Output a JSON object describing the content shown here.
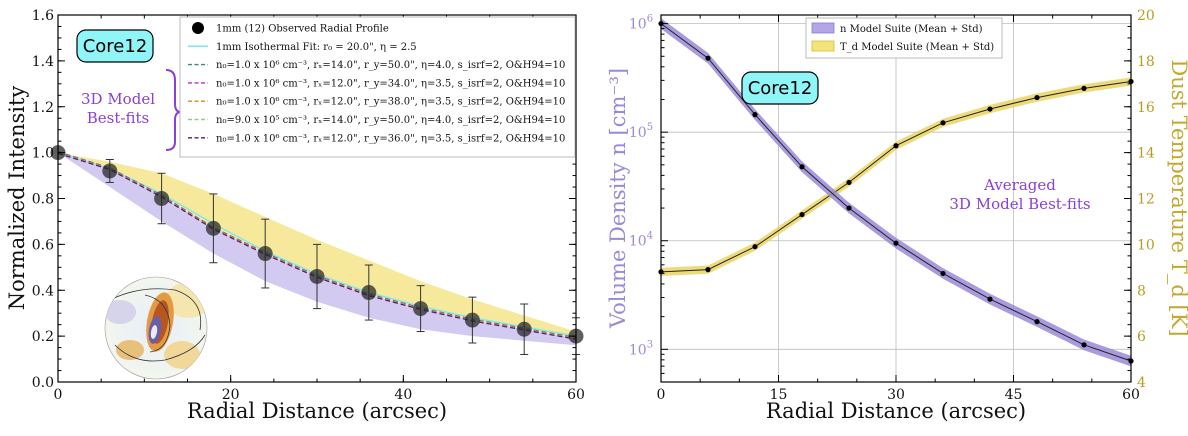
{
  "chart_data": [
    {
      "type": "line",
      "panel": "left",
      "xlabel": "Radial Distance (arcsec)",
      "ylabel": "Normalized Intensity",
      "xlim": [
        0,
        60
      ],
      "ylim": [
        0.0,
        1.6
      ],
      "xticks": [
        "0",
        "20",
        "40",
        "60"
      ],
      "yticks": [
        "0.0",
        "0.2",
        "0.4",
        "0.6",
        "0.8",
        "1.0",
        "1.2",
        "1.4",
        "1.6"
      ],
      "badge": "Core12",
      "annotation": [
        "3D Model",
        "Best-fits"
      ],
      "observed": {
        "name": "1mm (12) Observed Radial Profile",
        "x": [
          0,
          6,
          12,
          18,
          24,
          30,
          36,
          42,
          48,
          54,
          60
        ],
        "y": [
          1.0,
          0.92,
          0.8,
          0.67,
          0.56,
          0.46,
          0.39,
          0.32,
          0.27,
          0.23,
          0.2
        ],
        "err": [
          0.0,
          0.05,
          0.11,
          0.15,
          0.15,
          0.14,
          0.12,
          0.1,
          0.1,
          0.11,
          0.08
        ]
      },
      "isothermal": {
        "name": "1mm Isothermal Fit: r₀ = 20.0\", η = 2.5",
        "color": "#7fe6f2",
        "x": [
          0,
          6,
          12,
          18,
          24,
          30,
          36,
          42,
          48,
          54,
          60
        ],
        "y": [
          1.0,
          0.93,
          0.82,
          0.69,
          0.57,
          0.47,
          0.39,
          0.33,
          0.28,
          0.24,
          0.2
        ]
      },
      "models": [
        {
          "name": "n₀=1.0 x 10⁶ cm⁻³, rₓ=14.0\", r_y=50.0\", η=4.0, s_isrf=2, O&H94=10",
          "color": "#3d8a7a"
        },
        {
          "name": "n₀=1.0 x 10⁶ cm⁻³, rₓ=12.0\", r_y=34.0\", η=3.5, s_isrf=2, O&H94=10",
          "color": "#c02cc4"
        },
        {
          "name": "n₀=1.0 x 10⁶ cm⁻³, rₓ=12.0\", r_y=38.0\", η=3.5, s_isrf=2, O&H94=10",
          "color": "#c9901c"
        },
        {
          "name": "n₀=9.0 x 10⁵ cm⁻³, rₓ=14.0\", r_y=50.0\", η=4.0, s_isrf=2, O&H94=10",
          "color": "#9bc49b"
        },
        {
          "name": "n₀=1.0 x 10⁶ cm⁻³, rₓ=12.0\", r_y=36.0\", η=3.5, s_isrf=2, O&H94=10",
          "color": "#5a1a6a"
        }
      ],
      "model_curve": {
        "x": [
          0,
          6,
          12,
          18,
          24,
          30,
          36,
          42,
          48,
          54,
          60
        ],
        "y": [
          1.0,
          0.93,
          0.81,
          0.67,
          0.56,
          0.46,
          0.38,
          0.32,
          0.27,
          0.23,
          0.19
        ]
      },
      "band_yellow": {
        "color": "#f4e27a",
        "x": [
          0,
          6,
          12,
          18,
          24,
          30,
          36,
          42,
          48,
          54,
          60
        ],
        "upper": [
          1.0,
          0.96,
          0.91,
          0.82,
          0.72,
          0.62,
          0.53,
          0.44,
          0.36,
          0.29,
          0.22
        ],
        "lower": [
          1.0,
          0.93,
          0.81,
          0.67,
          0.56,
          0.46,
          0.38,
          0.32,
          0.27,
          0.23,
          0.19
        ]
      },
      "band_purple": {
        "color": "#b4a6e6",
        "x": [
          0,
          6,
          12,
          18,
          24,
          30,
          36,
          42,
          48,
          54,
          60
        ],
        "upper": [
          1.0,
          0.93,
          0.81,
          0.67,
          0.56,
          0.46,
          0.38,
          0.32,
          0.27,
          0.23,
          0.19
        ],
        "lower": [
          1.0,
          0.85,
          0.7,
          0.56,
          0.44,
          0.35,
          0.28,
          0.23,
          0.2,
          0.18,
          0.16
        ]
      }
    },
    {
      "type": "line",
      "panel": "right",
      "xlabel": "Radial Distance (arcsec)",
      "ylabel_left": "Volume Density n [cm⁻³]",
      "ylabel_right": "Dust Temperature T_d [K]",
      "xlim": [
        0,
        60
      ],
      "ylim_left": [
        500,
        1200000
      ],
      "yscale_left": "log",
      "ylim_right": [
        4,
        20
      ],
      "xticks": [
        "0",
        "15",
        "30",
        "45",
        "60"
      ],
      "yticks_left": [
        {
          "base": "10",
          "exp": "3"
        },
        {
          "base": "10",
          "exp": "4"
        },
        {
          "base": "10",
          "exp": "5"
        },
        {
          "base": "10",
          "exp": "6"
        }
      ],
      "yticks_right": [
        "4",
        "6",
        "8",
        "10",
        "12",
        "14",
        "16",
        "18",
        "20"
      ],
      "badge": "Core12",
      "annotation": [
        "Averaged",
        "3D Model Best-fits"
      ],
      "legend": [
        "n Model Suite (Mean + Std)",
        "T_d Model Suite (Mean + Std)"
      ],
      "density": {
        "name": "n Model Suite (Mean + Std)",
        "color": "#9a8ad8",
        "x": [
          0,
          6,
          12,
          18,
          24,
          30,
          36,
          42,
          48,
          54,
          60
        ],
        "y": [
          1000000,
          480000,
          145000,
          48000,
          20000,
          9500,
          5000,
          2900,
          1800,
          1100,
          780
        ]
      },
      "temperature": {
        "name": "T_d Model Suite (Mean + Std)",
        "color": "#e8d25a",
        "x": [
          0,
          6,
          12,
          18,
          24,
          30,
          36,
          42,
          48,
          54,
          60
        ],
        "y": [
          8.8,
          8.9,
          9.9,
          11.3,
          12.7,
          14.3,
          15.3,
          15.9,
          16.4,
          16.8,
          17.1
        ]
      }
    }
  ]
}
